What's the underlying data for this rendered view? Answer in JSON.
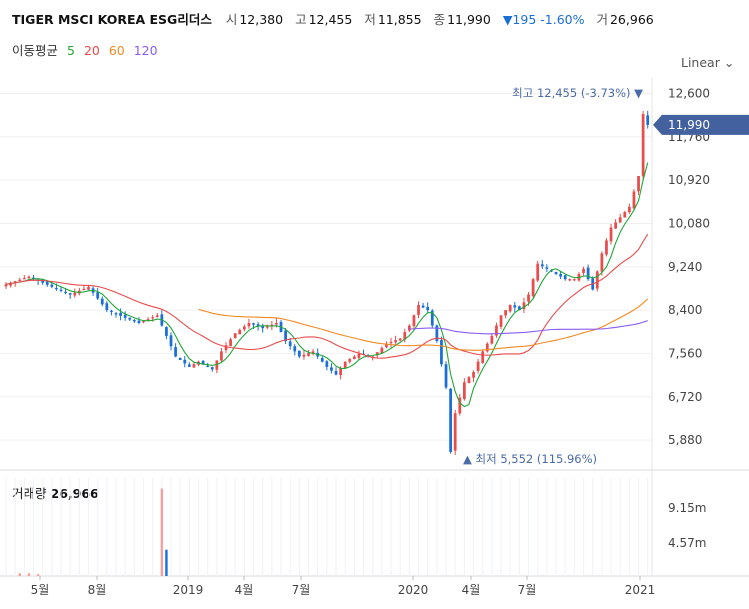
{
  "header": {
    "title": "TIGER MSCI KOREA ESG리더스",
    "open_label": "시",
    "open": "12,380",
    "high_label": "고",
    "high": "12,455",
    "low_label": "저",
    "low": "11,855",
    "close_label": "종",
    "close": "11,990",
    "change": "▼195 -1.60%",
    "volume_label": "거",
    "volume": "26,966"
  },
  "ma_legend": {
    "title": "이동평균",
    "items": [
      {
        "label": "5",
        "color": "#22a63a"
      },
      {
        "label": "20",
        "color": "#e84c4c"
      },
      {
        "label": "60",
        "color": "#f08a24"
      },
      {
        "label": "120",
        "color": "#8a5cf0"
      }
    ]
  },
  "scale_mode": "Linear",
  "volume_panel": {
    "label": "거래량",
    "value": "26,966"
  },
  "chart_data": {
    "type": "candlestick",
    "y_ticks": [
      12600,
      11760,
      10920,
      10080,
      9240,
      8400,
      7560,
      6720,
      5880
    ],
    "y_tick_labels": [
      "12,600",
      "11,760",
      "10,920",
      "10,080",
      "9,240",
      "8,400",
      "7,560",
      "6,720",
      "5,880"
    ],
    "ylim": [
      5300,
      12900
    ],
    "x_ticks": [
      "5월",
      "8월",
      "2019",
      "4월",
      "7월",
      "2020",
      "4월",
      "7월",
      "2021"
    ],
    "price_tag": "11,990",
    "max_annotation": "최고 12,455 (-3.73%) ▼",
    "min_annotation": "▲ 최저 5,552 (115.96%)",
    "volume_ticks": [
      "9.15m",
      "4.57m"
    ],
    "up_color": "#e84c4c",
    "down_color": "#1a6fd6",
    "price_path": [
      [
        0,
        8900
      ],
      [
        5,
        9050
      ],
      [
        10,
        8850
      ],
      [
        14,
        8700
      ],
      [
        18,
        8850
      ],
      [
        22,
        8400
      ],
      [
        26,
        8250
      ],
      [
        29,
        8150
      ],
      [
        33,
        8300
      ],
      [
        37,
        7500
      ],
      [
        40,
        7300
      ],
      [
        42,
        7400
      ],
      [
        45,
        7250
      ],
      [
        47,
        7600
      ],
      [
        50,
        7950
      ],
      [
        53,
        8150
      ],
      [
        56,
        8050
      ],
      [
        59,
        8150
      ],
      [
        61,
        7800
      ],
      [
        64,
        7500
      ],
      [
        67,
        7600
      ],
      [
        70,
        7300
      ],
      [
        72,
        7150
      ],
      [
        74,
        7400
      ],
      [
        77,
        7550
      ],
      [
        80,
        7500
      ],
      [
        83,
        7750
      ],
      [
        86,
        7850
      ],
      [
        88,
        8100
      ],
      [
        90,
        8500
      ],
      [
        92,
        8400
      ],
      [
        94,
        7800
      ],
      [
        96,
        6900
      ],
      [
        97,
        5650
      ],
      [
        98,
        6400
      ],
      [
        100,
        7000
      ],
      [
        102,
        7200
      ],
      [
        104,
        7600
      ],
      [
        106,
        7900
      ],
      [
        108,
        8300
      ],
      [
        110,
        8500
      ],
      [
        112,
        8400
      ],
      [
        114,
        8700
      ],
      [
        116,
        9300
      ],
      [
        118,
        9200
      ],
      [
        120,
        9100
      ],
      [
        122,
        9000
      ],
      [
        124,
        9000
      ],
      [
        126,
        9200
      ],
      [
        128,
        8800
      ],
      [
        130,
        9500
      ],
      [
        132,
        10000
      ],
      [
        134,
        10200
      ],
      [
        136,
        10400
      ],
      [
        138,
        11000
      ],
      [
        139,
        12200
      ],
      [
        140,
        11990
      ]
    ],
    "volume_bars": [
      {
        "bar": 3,
        "value": 0.3
      },
      {
        "bar": 5,
        "value": 0.3
      },
      {
        "bar": 7,
        "value": 0.2
      },
      {
        "bar": 34,
        "value": 9.3
      },
      {
        "bar": 35,
        "value": 2.8
      }
    ]
  }
}
